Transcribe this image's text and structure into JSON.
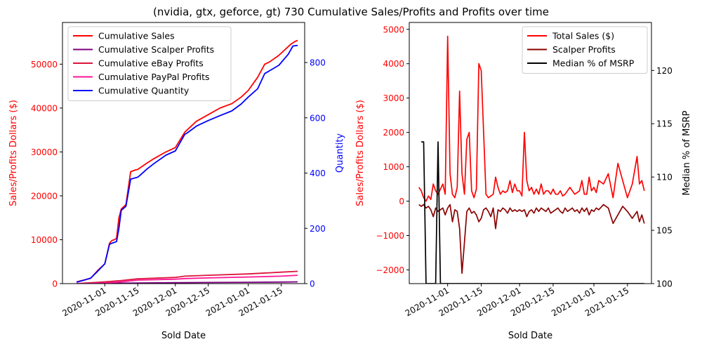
{
  "figure_title": "(nvidia, gtx, geforce, gt) 730 Cumulative Sales/Profits and Profits over time",
  "colors": {
    "sales": "#ff0000",
    "scalper": "#800080",
    "ebay": "#dc143c",
    "paypal": "#ff1493",
    "quantity": "#0000ff",
    "total_sales": "#ff0000",
    "scalper_profits": "#8b0000",
    "median_msrp": "#000000"
  },
  "chart_data": [
    {
      "type": "line",
      "xlabel": "Sold Date",
      "ylabel": "Sales/Profits Dollars ($)",
      "y2label": "Quantity",
      "x_ticks": [
        "2020-11-01",
        "2020-11-15",
        "2020-12-01",
        "2020-12-15",
        "2021-01-01",
        "2021-01-15"
      ],
      "ylim": [
        0,
        59500
      ],
      "y_ticks": [
        "0",
        "10000",
        "20000",
        "30000",
        "40000",
        "50000"
      ],
      "y2lim": [
        0,
        945
      ],
      "y2_ticks": [
        "0",
        "200",
        "400",
        "600",
        "800"
      ],
      "legend": "top-left",
      "series": [
        {
          "name": "Cumulative Sales",
          "axis": "left",
          "color_key": "sales",
          "x": [
            "2020-10-20",
            "2020-10-23",
            "2020-10-26",
            "2020-10-29",
            "2020-11-01",
            "2020-11-03",
            "2020-11-04",
            "2020-11-05",
            "2020-11-06",
            "2020-11-07",
            "2020-11-08",
            "2020-11-09",
            "2020-11-10",
            "2020-11-12",
            "2020-11-14",
            "2020-11-15",
            "2020-11-19",
            "2020-11-22",
            "2020-11-27",
            "2020-12-01",
            "2020-12-05",
            "2020-12-06",
            "2020-12-10",
            "2020-12-15",
            "2020-12-20",
            "2020-12-25",
            "2020-12-29",
            "2021-01-01",
            "2021-01-05",
            "2021-01-08",
            "2021-01-10",
            "2021-01-14",
            "2021-01-19",
            "2021-01-21",
            "2021-01-22"
          ],
          "values": [
            400,
            800,
            1200,
            3000,
            4500,
            9200,
            9800,
            10000,
            10300,
            15000,
            17000,
            17500,
            18000,
            25500,
            25900,
            26000,
            27500,
            28500,
            30000,
            31000,
            34500,
            35000,
            37000,
            38500,
            40000,
            41000,
            42500,
            44000,
            47000,
            50000,
            50500,
            52000,
            54500,
            55200,
            55400
          ]
        },
        {
          "name": "Cumulative Scalper Profits",
          "axis": "left",
          "color_key": "scalper",
          "x": [
            "2020-10-20",
            "2020-11-01",
            "2020-11-08",
            "2020-11-15",
            "2020-12-01",
            "2020-12-15",
            "2021-01-01",
            "2021-01-15",
            "2021-01-22"
          ],
          "values": [
            0,
            50,
            100,
            150,
            200,
            250,
            300,
            350,
            400
          ]
        },
        {
          "name": "Cumulative eBay Profits",
          "axis": "left",
          "color_key": "ebay",
          "x": [
            "2020-10-20",
            "2020-11-01",
            "2020-11-08",
            "2020-11-15",
            "2020-12-01",
            "2020-12-05",
            "2020-12-15",
            "2021-01-01",
            "2021-01-15",
            "2021-01-22"
          ],
          "values": [
            0,
            400,
            700,
            1100,
            1400,
            1700,
            1900,
            2200,
            2600,
            2800
          ]
        },
        {
          "name": "Cumulative PayPal Profits",
          "axis": "left",
          "color_key": "paypal",
          "x": [
            "2020-10-20",
            "2020-11-01",
            "2020-11-08",
            "2020-11-15",
            "2020-12-01",
            "2020-12-05",
            "2020-12-15",
            "2021-01-01",
            "2021-01-15",
            "2021-01-22"
          ],
          "values": [
            0,
            150,
            400,
            800,
            1000,
            1150,
            1300,
            1500,
            1700,
            1900
          ]
        },
        {
          "name": "Cumulative Quantity",
          "axis": "right",
          "color_key": "quantity",
          "x": [
            "2020-10-20",
            "2020-10-23",
            "2020-10-26",
            "2020-10-29",
            "2020-11-01",
            "2020-11-03",
            "2020-11-04",
            "2020-11-06",
            "2020-11-07",
            "2020-11-08",
            "2020-11-10",
            "2020-11-12",
            "2020-11-15",
            "2020-11-16",
            "2020-11-19",
            "2020-11-22",
            "2020-11-27",
            "2020-12-01",
            "2020-12-05",
            "2020-12-06",
            "2020-12-10",
            "2020-12-15",
            "2020-12-20",
            "2020-12-25",
            "2020-12-29",
            "2021-01-01",
            "2021-01-05",
            "2021-01-08",
            "2021-01-10",
            "2021-01-14",
            "2021-01-18",
            "2021-01-20",
            "2021-01-22"
          ],
          "values": [
            5,
            12,
            20,
            45,
            72,
            142,
            146,
            152,
            200,
            265,
            280,
            378,
            385,
            392,
            415,
            435,
            465,
            480,
            540,
            545,
            570,
            590,
            608,
            625,
            650,
            675,
            705,
            760,
            770,
            790,
            830,
            860,
            862
          ]
        }
      ]
    },
    {
      "type": "line",
      "xlabel": "Sold Date",
      "ylabel": "Sales/Profits Dollars ($)",
      "y2label": "Median % of MSRP",
      "x_ticks": [
        "2020-11-01",
        "2020-11-15",
        "2020-12-01",
        "2020-12-15",
        "2021-01-01",
        "2021-01-15"
      ],
      "ylim": [
        -2400,
        5200
      ],
      "y_ticks": [
        "−2000",
        "−1000",
        "0",
        "1000",
        "2000",
        "3000",
        "4000",
        "5000"
      ],
      "y2lim": [
        100,
        124.5
      ],
      "y2_ticks": [
        "100",
        "105",
        "110",
        "115",
        "120"
      ],
      "legend": "top-right",
      "series": [
        {
          "name": "Total Sales ($)",
          "axis": "left",
          "color_key": "total_sales",
          "x": [
            "2020-10-20",
            "2020-10-21",
            "2020-10-22",
            "2020-10-23",
            "2020-10-24",
            "2020-10-25",
            "2020-10-26",
            "2020-10-27",
            "2020-10-28",
            "2020-10-29",
            "2020-10-30",
            "2020-10-31",
            "2020-11-01",
            "2020-11-02",
            "2020-11-03",
            "2020-11-04",
            "2020-11-05",
            "2020-11-06",
            "2020-11-07",
            "2020-11-08",
            "2020-11-09",
            "2020-11-10",
            "2020-11-11",
            "2020-11-12",
            "2020-11-13",
            "2020-11-14",
            "2020-11-15",
            "2020-11-16",
            "2020-11-17",
            "2020-11-18",
            "2020-11-19",
            "2020-11-20",
            "2020-11-21",
            "2020-11-22",
            "2020-11-23",
            "2020-11-24",
            "2020-11-25",
            "2020-11-26",
            "2020-11-27",
            "2020-11-28",
            "2020-11-29",
            "2020-11-30",
            "2020-12-01",
            "2020-12-02",
            "2020-12-03",
            "2020-12-04",
            "2020-12-05",
            "2020-12-06",
            "2020-12-07",
            "2020-12-08",
            "2020-12-09",
            "2020-12-10",
            "2020-12-11",
            "2020-12-12",
            "2020-12-13",
            "2020-12-14",
            "2020-12-15",
            "2020-12-16",
            "2020-12-17",
            "2020-12-18",
            "2020-12-19",
            "2020-12-20",
            "2020-12-21",
            "2020-12-22",
            "2020-12-23",
            "2020-12-24",
            "2020-12-25",
            "2020-12-26",
            "2020-12-27",
            "2020-12-28",
            "2020-12-29",
            "2020-12-30",
            "2020-12-31",
            "2021-01-01",
            "2021-01-02",
            "2021-01-03",
            "2021-01-05",
            "2021-01-07",
            "2021-01-09",
            "2021-01-11",
            "2021-01-13",
            "2021-01-15",
            "2021-01-17",
            "2021-01-19",
            "2021-01-20",
            "2021-01-21",
            "2021-01-22"
          ],
          "values": [
            400,
            300,
            100,
            0,
            150,
            50,
            500,
            300,
            200,
            350,
            500,
            200,
            4800,
            800,
            200,
            100,
            400,
            3200,
            800,
            200,
            1800,
            2000,
            300,
            100,
            350,
            4000,
            3800,
            2000,
            200,
            100,
            150,
            200,
            700,
            400,
            200,
            300,
            250,
            300,
            600,
            250,
            500,
            300,
            300,
            150,
            2000,
            600,
            300,
            400,
            200,
            350,
            200,
            500,
            200,
            300,
            300,
            200,
            350,
            200,
            200,
            300,
            150,
            200,
            300,
            400,
            300,
            200,
            250,
            300,
            600,
            200,
            200,
            700,
            300,
            400,
            250,
            600,
            500,
            800,
            100,
            1100,
            600,
            100,
            500,
            1300,
            500,
            600,
            300
          ]
        },
        {
          "name": "Scalper Profits",
          "axis": "left",
          "color_key": "scalper_profits",
          "x": [
            "2020-10-20",
            "2020-10-21",
            "2020-10-22",
            "2020-10-23",
            "2020-10-24",
            "2020-10-25",
            "2020-10-26",
            "2020-10-27",
            "2020-10-28",
            "2020-10-29",
            "2020-10-30",
            "2020-10-31",
            "2020-11-01",
            "2020-11-02",
            "2020-11-03",
            "2020-11-04",
            "2020-11-05",
            "2020-11-06",
            "2020-11-07",
            "2020-11-08",
            "2020-11-09",
            "2020-11-10",
            "2020-11-11",
            "2020-11-12",
            "2020-11-13",
            "2020-11-14",
            "2020-11-15",
            "2020-11-16",
            "2020-11-17",
            "2020-11-18",
            "2020-11-19",
            "2020-11-20",
            "2020-11-21",
            "2020-11-22",
            "2020-11-23",
            "2020-11-24",
            "2020-11-25",
            "2020-11-26",
            "2020-11-27",
            "2020-11-28",
            "2020-11-29",
            "2020-11-30",
            "2020-12-01",
            "2020-12-02",
            "2020-12-03",
            "2020-12-04",
            "2020-12-05",
            "2020-12-06",
            "2020-12-07",
            "2020-12-08",
            "2020-12-09",
            "2020-12-10",
            "2020-12-11",
            "2020-12-12",
            "2020-12-13",
            "2020-12-14",
            "2020-12-15",
            "2020-12-16",
            "2020-12-17",
            "2020-12-18",
            "2020-12-19",
            "2020-12-20",
            "2020-12-21",
            "2020-12-22",
            "2020-12-23",
            "2020-12-24",
            "2020-12-25",
            "2020-12-26",
            "2020-12-27",
            "2020-12-28",
            "2020-12-29",
            "2020-12-30",
            "2020-12-31",
            "2021-01-01",
            "2021-01-02",
            "2021-01-03",
            "2021-01-05",
            "2021-01-07",
            "2021-01-09",
            "2021-01-11",
            "2021-01-13",
            "2021-01-15",
            "2021-01-17",
            "2021-01-19",
            "2021-01-20",
            "2021-01-21",
            "2021-01-22"
          ],
          "values": [
            -100,
            -150,
            -100,
            -200,
            -150,
            -250,
            -450,
            -200,
            -300,
            -250,
            -200,
            -400,
            -200,
            -100,
            -600,
            -250,
            -300,
            -800,
            -2100,
            -1200,
            -300,
            -200,
            -350,
            -300,
            -400,
            -600,
            -500,
            -250,
            -200,
            -300,
            -450,
            -200,
            -800,
            -250,
            -300,
            -200,
            -250,
            -350,
            -200,
            -300,
            -250,
            -300,
            -250,
            -300,
            -250,
            -450,
            -300,
            -250,
            -350,
            -200,
            -300,
            -200,
            -250,
            -300,
            -200,
            -350,
            -300,
            -250,
            -200,
            -300,
            -350,
            -200,
            -300,
            -250,
            -200,
            -300,
            -250,
            -350,
            -200,
            -300,
            -200,
            -400,
            -250,
            -300,
            -200,
            -250,
            -100,
            -200,
            -650,
            -400,
            -150,
            -300,
            -500,
            -300,
            -600,
            -400,
            -650
          ]
        },
        {
          "name": "Median % of MSRP",
          "axis": "right",
          "color_key": "median_msrp",
          "x": [
            "2020-10-21",
            "2020-10-22",
            "2020-10-23",
            "2020-10-24",
            "2020-10-26",
            "2020-10-27",
            "2020-10-28",
            "2020-10-29",
            "2020-10-30",
            "2020-10-31",
            "2020-11-01",
            "2020-11-02",
            "2020-11-03",
            "2020-11-04",
            "2020-11-05",
            "2020-11-06",
            "2020-11-07",
            "2020-11-08",
            "2020-11-09",
            "2020-11-10",
            "2020-11-11",
            "2020-11-12",
            "2020-11-13",
            "2020-11-14",
            "2020-11-15",
            "2020-11-16",
            "2020-11-17",
            "2020-11-18",
            "2020-11-19",
            "2020-11-20",
            "2020-11-21",
            "2020-11-22",
            "2020-11-23",
            "2020-11-24",
            "2020-11-25",
            "2020-11-26",
            "2020-11-27",
            "2020-11-28",
            "2020-11-29",
            "2020-11-30",
            "2020-12-01",
            "2020-12-02",
            "2020-12-03",
            "2020-12-04",
            "2020-12-05",
            "2020-12-06",
            "2020-12-07",
            "2020-12-08",
            "2020-12-09",
            "2020-12-10",
            "2020-12-11",
            "2020-12-12",
            "2020-12-13",
            "2020-12-14",
            "2020-12-15",
            "2020-12-16",
            "2020-12-17",
            "2020-12-18",
            "2020-12-19",
            "2020-12-20",
            "2020-12-21",
            "2020-12-22",
            "2020-12-23",
            "2020-12-24",
            "2020-12-25",
            "2020-12-26",
            "2020-12-27",
            "2020-12-28",
            "2020-12-29",
            "2020-12-30",
            "2020-12-31",
            "2021-01-01",
            "2021-01-02",
            "2021-01-03",
            "2021-01-04",
            "2021-01-05",
            "2021-01-06",
            "2021-01-07",
            "2021-01-08",
            "2021-01-09",
            "2021-01-10",
            "2021-01-11",
            "2021-01-12",
            "2021-01-13",
            "2021-01-14",
            "2021-01-15",
            "2021-01-16",
            "2021-01-17",
            "2021-01-18",
            "2021-01-19",
            "2021-01-20",
            "2021-01-21",
            "2021-01-22"
          ],
          "values": [
            113.3,
            113.3,
            100,
            100,
            100,
            100,
            113.3,
            100,
            100,
            100,
            100,
            100,
            100,
            100,
            100,
            100,
            100,
            100,
            100,
            100,
            100,
            100,
            100,
            100,
            100,
            100,
            100,
            100,
            100,
            100,
            100,
            100,
            100,
            100,
            100,
            100,
            100,
            100,
            100,
            100,
            100,
            100,
            100,
            100,
            100,
            100,
            100,
            100,
            100,
            100,
            100,
            100,
            100,
            100,
            100,
            100,
            100,
            100,
            100,
            100,
            100,
            100,
            100,
            100,
            100,
            100,
            100,
            100,
            100,
            100,
            100,
            100,
            100,
            100,
            100,
            100,
            100,
            100,
            100,
            100,
            100,
            100,
            100,
            100,
            100,
            100,
            100,
            100,
            100,
            100,
            100,
            100,
            100
          ]
        }
      ]
    }
  ]
}
